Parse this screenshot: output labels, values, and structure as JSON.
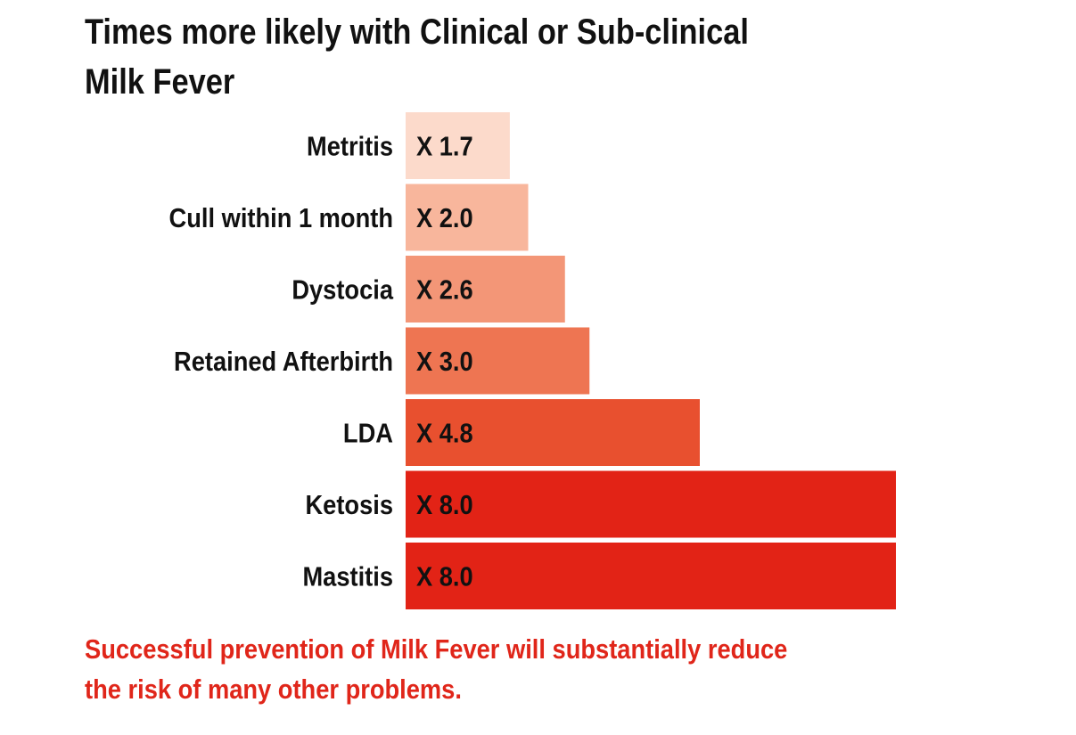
{
  "chart_data": {
    "type": "bar",
    "orientation": "horizontal",
    "title": "Times more likely with Clinical or Sub-clinical Milk Fever",
    "title_lines": [
      "Times more likely with Clinical or Sub-clinical",
      "Milk Fever"
    ],
    "categories": [
      "Metritis",
      "Cull within 1 month",
      "Dystocia",
      "Retained Afterbirth",
      "LDA",
      "Ketosis",
      "Mastitis"
    ],
    "values": [
      1.7,
      2.0,
      2.6,
      3.0,
      4.8,
      8.0,
      8.0
    ],
    "data_labels": [
      "X 1.7",
      "X 2.0",
      "X 2.6",
      "X 3.0",
      "X 4.8",
      "X 8.0",
      "X 8.0"
    ],
    "bar_colors": [
      "#fcdacb",
      "#f8b69c",
      "#f39677",
      "#ee7552",
      "#e8502f",
      "#e22316",
      "#e22316"
    ],
    "xlim": [
      0,
      8.0
    ],
    "grid": false,
    "legend": "none"
  },
  "footnote_lines": [
    "Successful prevention of Milk Fever will substantially reduce",
    "the risk of many other problems."
  ],
  "colors": {
    "title": "#111111",
    "label": "#111111",
    "footnote": "#e0261a"
  }
}
